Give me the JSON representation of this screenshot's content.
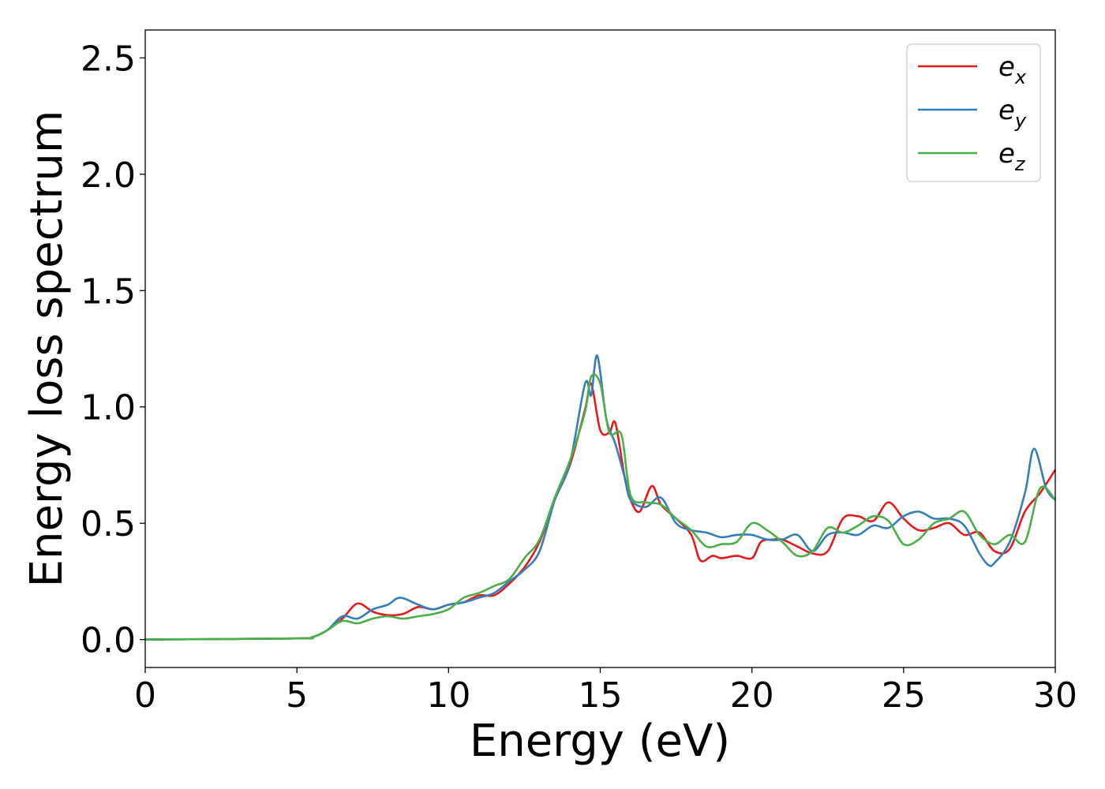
{
  "chart_data": {
    "type": "line",
    "title": "",
    "xlabel": "Energy (eV)",
    "ylabel": "Energy loss spectrum",
    "xlim": [
      0,
      30
    ],
    "ylim": [
      -0.12,
      2.62
    ],
    "xticks": [
      0,
      5,
      10,
      15,
      20,
      25,
      30
    ],
    "xtick_labels": [
      "0",
      "5",
      "10",
      "15",
      "20",
      "25",
      "30"
    ],
    "yticks": [
      0.0,
      0.5,
      1.0,
      1.5,
      2.0,
      2.5
    ],
    "ytick_labels": [
      "0.0",
      "0.5",
      "1.0",
      "1.5",
      "2.0",
      "2.5"
    ],
    "grid": false,
    "legend_position": "top-right",
    "series": [
      {
        "name": "e_x",
        "legend_main": "e",
        "legend_sub": "x",
        "color": "#e41a1c",
        "x": [
          0,
          5,
          5.5,
          6,
          6.5,
          7,
          7.5,
          8,
          8.5,
          9,
          9.5,
          10,
          10.5,
          11,
          11.5,
          12,
          12.5,
          13,
          13.5,
          14,
          14.5,
          14.7,
          15,
          15.3,
          15.5,
          15.8,
          16,
          16.3,
          16.7,
          17,
          17.5,
          18,
          18.3,
          18.7,
          19,
          19.5,
          20,
          20.3,
          20.7,
          21,
          21.5,
          22,
          22.5,
          23,
          23.5,
          24,
          24.5,
          25,
          25.5,
          26,
          26.5,
          27,
          27.5,
          28,
          28.5,
          29,
          29.5,
          30
        ],
        "y": [
          0,
          0.005,
          0.01,
          0.04,
          0.09,
          0.155,
          0.12,
          0.105,
          0.11,
          0.14,
          0.13,
          0.15,
          0.16,
          0.19,
          0.19,
          0.24,
          0.31,
          0.42,
          0.6,
          0.75,
          0.99,
          1.1,
          0.9,
          0.89,
          0.93,
          0.7,
          0.6,
          0.55,
          0.66,
          0.58,
          0.52,
          0.45,
          0.34,
          0.36,
          0.35,
          0.36,
          0.35,
          0.42,
          0.43,
          0.43,
          0.4,
          0.37,
          0.38,
          0.52,
          0.53,
          0.51,
          0.59,
          0.52,
          0.47,
          0.48,
          0.5,
          0.45,
          0.46,
          0.38,
          0.39,
          0.55,
          0.63,
          0.73
        ]
      },
      {
        "name": "e_y",
        "legend_main": "e",
        "legend_sub": "y",
        "color": "#377eb8",
        "x": [
          0,
          5,
          5.5,
          6,
          6.5,
          7,
          7.5,
          8,
          8.4,
          9,
          9.5,
          10,
          10.5,
          11,
          11.5,
          12,
          12.5,
          13,
          13.5,
          14,
          14.5,
          14.7,
          14.9,
          15.2,
          15.5,
          15.8,
          16,
          16.5,
          17,
          17.5,
          18,
          18.5,
          19,
          19.5,
          20,
          20.5,
          21,
          21.5,
          22,
          22.5,
          23,
          23.5,
          24,
          24.5,
          25,
          25.5,
          26,
          26.5,
          27,
          27.5,
          27.8,
          28,
          28.5,
          29,
          29.3,
          29.7,
          30
        ],
        "y": [
          0,
          0.005,
          0.01,
          0.04,
          0.1,
          0.09,
          0.13,
          0.15,
          0.18,
          0.15,
          0.13,
          0.15,
          0.16,
          0.18,
          0.2,
          0.25,
          0.3,
          0.38,
          0.6,
          0.76,
          1.1,
          1.05,
          1.22,
          0.95,
          0.84,
          0.7,
          0.6,
          0.57,
          0.61,
          0.5,
          0.47,
          0.46,
          0.44,
          0.45,
          0.45,
          0.43,
          0.43,
          0.45,
          0.38,
          0.45,
          0.46,
          0.45,
          0.49,
          0.48,
          0.53,
          0.55,
          0.52,
          0.52,
          0.49,
          0.37,
          0.32,
          0.33,
          0.42,
          0.63,
          0.82,
          0.65,
          0.6
        ]
      },
      {
        "name": "e_z",
        "legend_main": "e",
        "legend_sub": "z",
        "color": "#4daf4a",
        "x": [
          0,
          5,
          5.5,
          6,
          6.5,
          7,
          7.5,
          8,
          8.5,
          9,
          9.5,
          10,
          10.5,
          11,
          11.5,
          12,
          12.5,
          13,
          13.5,
          14,
          14.5,
          14.7,
          15,
          15.3,
          15.7,
          16,
          16.5,
          17,
          17.5,
          18,
          18.5,
          19,
          19.5,
          20,
          20.5,
          21,
          21.5,
          22,
          22.5,
          23,
          23.5,
          24,
          24.5,
          25,
          25.5,
          26,
          26.5,
          27,
          27.5,
          28,
          28.5,
          29,
          29.5,
          30
        ],
        "y": [
          0,
          0.005,
          0.01,
          0.04,
          0.08,
          0.07,
          0.09,
          0.1,
          0.09,
          0.1,
          0.11,
          0.13,
          0.18,
          0.2,
          0.23,
          0.26,
          0.35,
          0.43,
          0.61,
          0.77,
          0.98,
          1.13,
          1.1,
          0.89,
          0.88,
          0.62,
          0.59,
          0.58,
          0.52,
          0.47,
          0.4,
          0.41,
          0.42,
          0.5,
          0.47,
          0.42,
          0.36,
          0.38,
          0.48,
          0.46,
          0.49,
          0.53,
          0.51,
          0.41,
          0.43,
          0.5,
          0.52,
          0.55,
          0.45,
          0.41,
          0.45,
          0.42,
          0.65,
          0.6
        ]
      }
    ]
  }
}
